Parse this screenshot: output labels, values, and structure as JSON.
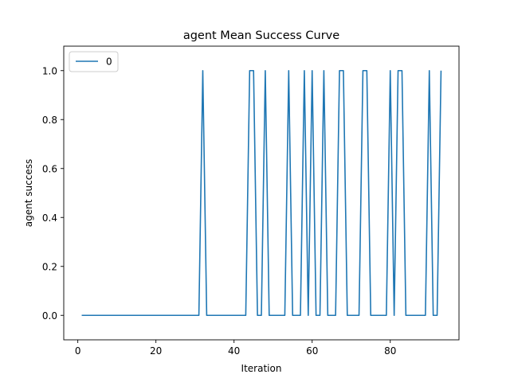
{
  "chart_data": {
    "type": "line",
    "title": "agent Mean Success Curve",
    "xlabel": "Iteration",
    "ylabel": "agent success",
    "xlim": [
      -3.6,
      97.6
    ],
    "ylim": [
      -0.1,
      1.1
    ],
    "xticks": [
      0,
      20,
      40,
      60,
      80
    ],
    "xtick_labels": [
      "0",
      "20",
      "40",
      "60",
      "80"
    ],
    "yticks": [
      0.0,
      0.2,
      0.4,
      0.6,
      0.8,
      1.0
    ],
    "ytick_labels": [
      "0.0",
      "0.2",
      "0.4",
      "0.6",
      "0.8",
      "1.0"
    ],
    "grid": false,
    "legend_position": "top-left",
    "series_color": "#1f77b4",
    "series": [
      {
        "name": "0",
        "x": [
          1,
          2,
          3,
          4,
          5,
          6,
          7,
          8,
          9,
          10,
          11,
          12,
          13,
          14,
          15,
          16,
          17,
          18,
          19,
          20,
          21,
          22,
          23,
          24,
          25,
          26,
          27,
          28,
          29,
          30,
          31,
          32,
          33,
          34,
          35,
          36,
          37,
          38,
          39,
          40,
          41,
          42,
          43,
          44,
          45,
          46,
          47,
          48,
          49,
          50,
          51,
          52,
          53,
          54,
          55,
          56,
          57,
          58,
          59,
          60,
          61,
          62,
          63,
          64,
          65,
          66,
          67,
          68,
          69,
          70,
          71,
          72,
          73,
          74,
          75,
          76,
          77,
          78,
          79,
          80,
          81,
          82,
          83,
          84,
          85,
          86,
          87,
          88,
          89,
          90,
          91,
          92,
          93
        ],
        "values": [
          0,
          0,
          0,
          0,
          0,
          0,
          0,
          0,
          0,
          0,
          0,
          0,
          0,
          0,
          0,
          0,
          0,
          0,
          0,
          0,
          0,
          0,
          0,
          0,
          0,
          0,
          0,
          0,
          0,
          0,
          0,
          1,
          0,
          0,
          0,
          0,
          0,
          0,
          0,
          0,
          0,
          0,
          0,
          1,
          1,
          0,
          0,
          1,
          0,
          0,
          0,
          0,
          0,
          1,
          0,
          0,
          0,
          1,
          0,
          1,
          0,
          0,
          1,
          0,
          0,
          0,
          1,
          1,
          0,
          0,
          0,
          0,
          1,
          1,
          0,
          0,
          0,
          0,
          0,
          1,
          0,
          1,
          1,
          0,
          0,
          0,
          0,
          0,
          0,
          1,
          0,
          0,
          1
        ]
      }
    ]
  }
}
